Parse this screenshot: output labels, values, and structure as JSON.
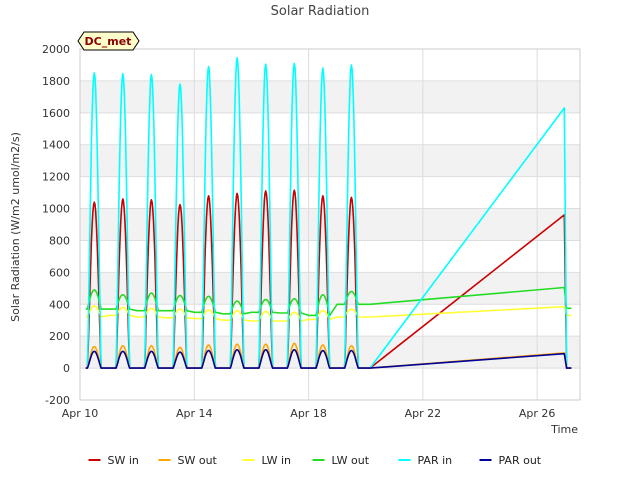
{
  "chart_data": {
    "type": "line",
    "title": "Solar Radiation",
    "ylabel": "Solar Radiation (W/m2 umol/m2/s)",
    "xlabel": "Time",
    "badge": "DC_met",
    "ylim": [
      -200,
      2000
    ],
    "xlim_days": [
      10,
      27.5
    ],
    "x_ticks": [
      {
        "label": "Apr 10",
        "day": 10
      },
      {
        "label": "Apr 14",
        "day": 14
      },
      {
        "label": "Apr 18",
        "day": 18
      },
      {
        "label": "Apr 22",
        "day": 22
      },
      {
        "label": "Apr 26",
        "day": 26
      }
    ],
    "y_ticks": [
      -200,
      0,
      200,
      400,
      600,
      800,
      1000,
      1200,
      1400,
      1600,
      1800,
      2000
    ],
    "grid": true,
    "legend_position": "bottom",
    "series": [
      {
        "name": "SW in",
        "color": "#cc0000",
        "day_peaks": [
          1040,
          1060,
          1055,
          1025,
          1080,
          1095,
          1110,
          1115,
          1080,
          1070
        ],
        "gap_end": 960,
        "tail": [
          960,
          0
        ]
      },
      {
        "name": "SW out",
        "color": "#ffa500",
        "day_peaks": [
          135,
          140,
          140,
          130,
          145,
          150,
          150,
          155,
          145,
          140
        ],
        "gap_end": 95,
        "tail": [
          95,
          0
        ]
      },
      {
        "name": "LW in",
        "color": "#ffff33",
        "day_peaks": [
          390,
          380,
          375,
          370,
          365,
          360,
          355,
          350,
          360,
          370
        ],
        "night_values": [
          320,
          330,
          320,
          315,
          310,
          300,
          295,
          295,
          305,
          320
        ],
        "gap_end": 385,
        "tail": [
          385,
          330
        ]
      },
      {
        "name": "LW out",
        "color": "#22dd22",
        "day_peaks": [
          490,
          460,
          470,
          455,
          450,
          420,
          430,
          435,
          460,
          480
        ],
        "night_values": [
          370,
          370,
          360,
          360,
          350,
          340,
          350,
          345,
          330,
          400
        ],
        "gap_end": 505,
        "tail": [
          505,
          375
        ]
      },
      {
        "name": "PAR in",
        "color": "#00ffff",
        "day_peaks": [
          1850,
          1845,
          1840,
          1780,
          1890,
          1945,
          1905,
          1910,
          1880,
          1900
        ],
        "gap_end": 1630,
        "tail": [
          1630,
          0
        ]
      },
      {
        "name": "PAR out",
        "color": "#000099",
        "day_peaks": [
          105,
          105,
          105,
          100,
          110,
          115,
          115,
          115,
          110,
          110
        ],
        "gap_end": 90,
        "tail": [
          90,
          0
        ]
      }
    ]
  }
}
